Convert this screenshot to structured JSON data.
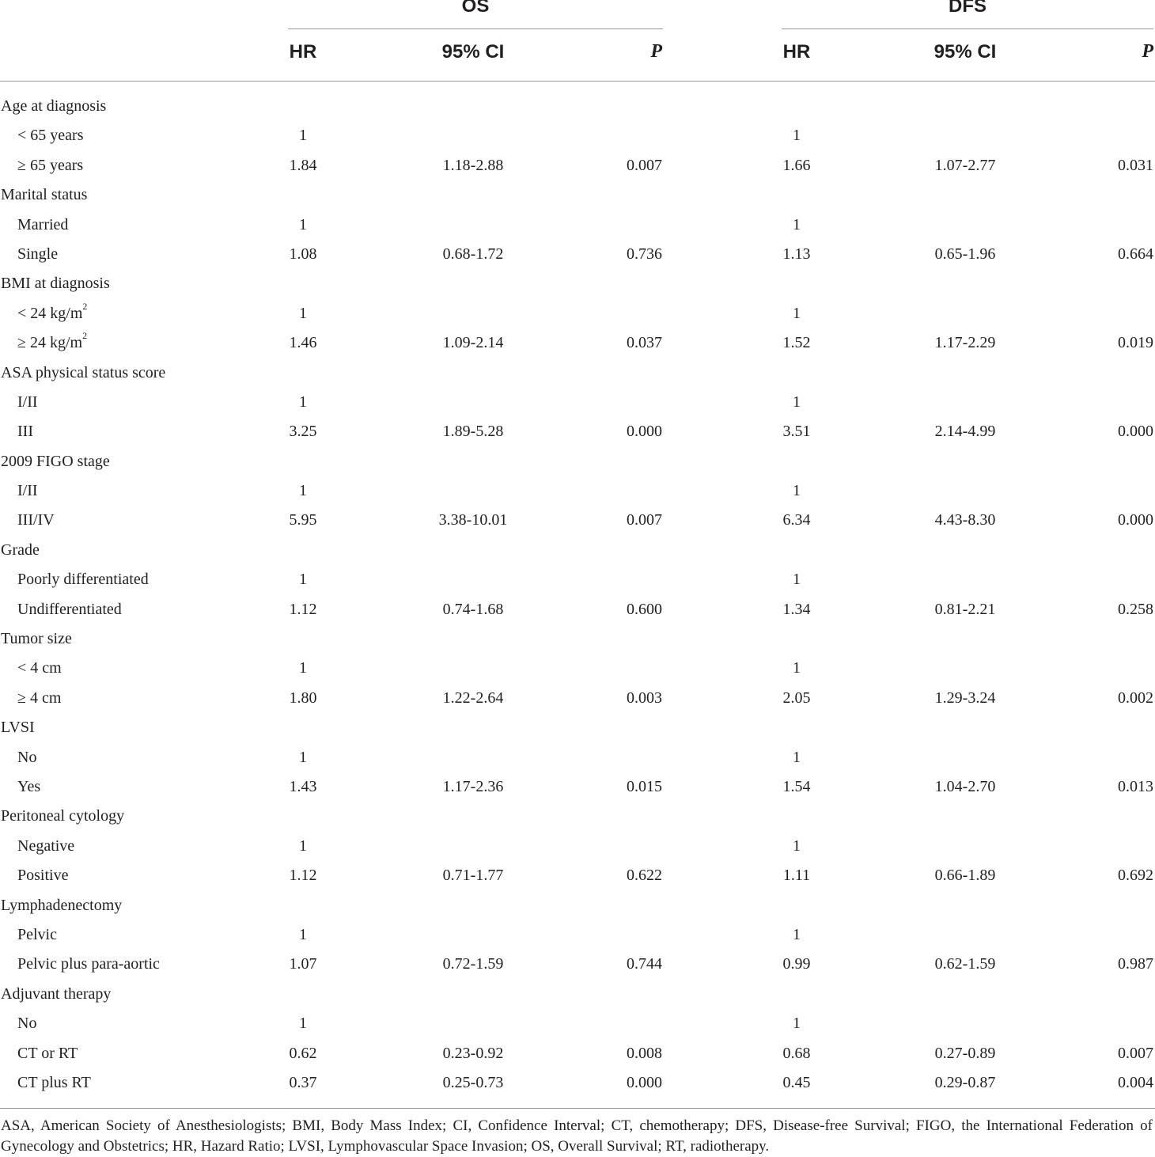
{
  "table": {
    "groups": [
      {
        "label": "OS"
      },
      {
        "label": "DFS"
      }
    ],
    "columns": {
      "hr": "HR",
      "ci": "95% CI",
      "p": "P"
    },
    "rows": [
      {
        "label": "Age at diagnosis",
        "type": "category"
      },
      {
        "label": "< 65 years",
        "type": "sub",
        "os_hr": "1",
        "os_ci": "",
        "os_p": "",
        "dfs_hr": "1",
        "dfs_ci": "",
        "dfs_p": ""
      },
      {
        "label": "≥ 65 years",
        "type": "sub",
        "os_hr": "1.84",
        "os_ci": "1.18-2.88",
        "os_p": "0.007",
        "dfs_hr": "1.66",
        "dfs_ci": "1.07-2.77",
        "dfs_p": "0.031"
      },
      {
        "label": "Marital status",
        "type": "category"
      },
      {
        "label": "Married",
        "type": "sub",
        "os_hr": "1",
        "os_ci": "",
        "os_p": "",
        "dfs_hr": "1",
        "dfs_ci": "",
        "dfs_p": ""
      },
      {
        "label": "Single",
        "type": "sub",
        "os_hr": "1.08",
        "os_ci": "0.68-1.72",
        "os_p": "0.736",
        "dfs_hr": "1.13",
        "dfs_ci": "0.65-1.96",
        "dfs_p": "0.664"
      },
      {
        "label": "BMI at diagnosis",
        "type": "category"
      },
      {
        "label": "< 24 kg/m",
        "sup": "2",
        "type": "sub",
        "os_hr": "1",
        "os_ci": "",
        "os_p": "",
        "dfs_hr": "1",
        "dfs_ci": "",
        "dfs_p": ""
      },
      {
        "label": "≥ 24 kg/m",
        "sup": "2",
        "type": "sub",
        "os_hr": "1.46",
        "os_ci": "1.09-2.14",
        "os_p": "0.037",
        "dfs_hr": "1.52",
        "dfs_ci": "1.17-2.29",
        "dfs_p": "0.019"
      },
      {
        "label": "ASA physical status score",
        "type": "category"
      },
      {
        "label": "I/II",
        "type": "sub",
        "os_hr": "1",
        "os_ci": "",
        "os_p": "",
        "dfs_hr": "1",
        "dfs_ci": "",
        "dfs_p": ""
      },
      {
        "label": "III",
        "type": "sub",
        "os_hr": "3.25",
        "os_ci": "1.89-5.28",
        "os_p": "0.000",
        "dfs_hr": "3.51",
        "dfs_ci": "2.14-4.99",
        "dfs_p": "0.000"
      },
      {
        "label": "2009 FIGO stage",
        "type": "category"
      },
      {
        "label": "I/II",
        "type": "sub",
        "os_hr": "1",
        "os_ci": "",
        "os_p": "",
        "dfs_hr": "1",
        "dfs_ci": "",
        "dfs_p": ""
      },
      {
        "label": "III/IV",
        "type": "sub",
        "os_hr": "5.95",
        "os_ci": "3.38-10.01",
        "os_p": "0.007",
        "dfs_hr": "6.34",
        "dfs_ci": "4.43-8.30",
        "dfs_p": "0.000"
      },
      {
        "label": "Grade",
        "type": "category"
      },
      {
        "label": "Poorly differentiated",
        "type": "sub",
        "os_hr": "1",
        "os_ci": "",
        "os_p": "",
        "dfs_hr": "1",
        "dfs_ci": "",
        "dfs_p": ""
      },
      {
        "label": "Undifferentiated",
        "type": "sub",
        "os_hr": "1.12",
        "os_ci": "0.74-1.68",
        "os_p": "0.600",
        "dfs_hr": "1.34",
        "dfs_ci": "0.81-2.21",
        "dfs_p": "0.258"
      },
      {
        "label": "Tumor size",
        "type": "category"
      },
      {
        "label": "< 4 cm",
        "type": "sub",
        "os_hr": "1",
        "os_ci": "",
        "os_p": "",
        "dfs_hr": "1",
        "dfs_ci": "",
        "dfs_p": ""
      },
      {
        "label": "≥ 4 cm",
        "type": "sub",
        "os_hr": "1.80",
        "os_ci": "1.22-2.64",
        "os_p": "0.003",
        "dfs_hr": "2.05",
        "dfs_ci": "1.29-3.24",
        "dfs_p": "0.002"
      },
      {
        "label": "LVSI",
        "type": "category"
      },
      {
        "label": "No",
        "type": "sub",
        "os_hr": "1",
        "os_ci": "",
        "os_p": "",
        "dfs_hr": "1",
        "dfs_ci": "",
        "dfs_p": ""
      },
      {
        "label": "Yes",
        "type": "sub",
        "os_hr": "1.43",
        "os_ci": "1.17-2.36",
        "os_p": "0.015",
        "dfs_hr": "1.54",
        "dfs_ci": "1.04-2.70",
        "dfs_p": "0.013"
      },
      {
        "label": "Peritoneal cytology",
        "type": "category"
      },
      {
        "label": "Negative",
        "type": "sub",
        "os_hr": "1",
        "os_ci": "",
        "os_p": "",
        "dfs_hr": "1",
        "dfs_ci": "",
        "dfs_p": ""
      },
      {
        "label": "Positive",
        "type": "sub",
        "os_hr": "1.12",
        "os_ci": "0.71-1.77",
        "os_p": "0.622",
        "dfs_hr": "1.11",
        "dfs_ci": "0.66-1.89",
        "dfs_p": "0.692"
      },
      {
        "label": "Lymphadenectomy",
        "type": "category"
      },
      {
        "label": "Pelvic",
        "type": "sub",
        "os_hr": "1",
        "os_ci": "",
        "os_p": "",
        "dfs_hr": "1",
        "dfs_ci": "",
        "dfs_p": ""
      },
      {
        "label": "Pelvic plus para-aortic",
        "type": "sub",
        "os_hr": "1.07",
        "os_ci": "0.72-1.59",
        "os_p": "0.744",
        "dfs_hr": "0.99",
        "dfs_ci": "0.62-1.59",
        "dfs_p": "0.987"
      },
      {
        "label": "Adjuvant therapy",
        "type": "category"
      },
      {
        "label": "No",
        "type": "sub",
        "os_hr": "1",
        "os_ci": "",
        "os_p": "",
        "dfs_hr": "1",
        "dfs_ci": "",
        "dfs_p": ""
      },
      {
        "label": "CT or RT",
        "type": "sub",
        "os_hr": "0.62",
        "os_ci": "0.23-0.92",
        "os_p": "0.008",
        "dfs_hr": "0.68",
        "dfs_ci": "0.27-0.89",
        "dfs_p": "0.007"
      },
      {
        "label": "CT plus RT",
        "type": "sub",
        "os_hr": "0.37",
        "os_ci": "0.25-0.73",
        "os_p": "0.000",
        "dfs_hr": "0.45",
        "dfs_ci": "0.29-0.87",
        "dfs_p": "0.004"
      }
    ]
  },
  "footnote": "ASA, American Society of Anesthesiologists; BMI, Body Mass Index; CI, Confidence Interval; CT, chemotherapy; DFS, Disease-free Survival; FIGO, the International Federation of Gynecology and Obstetrics; HR, Hazard Ratio; LVSI, Lymphovascular Space Invasion; OS, Overall Survival; RT, radiotherapy."
}
